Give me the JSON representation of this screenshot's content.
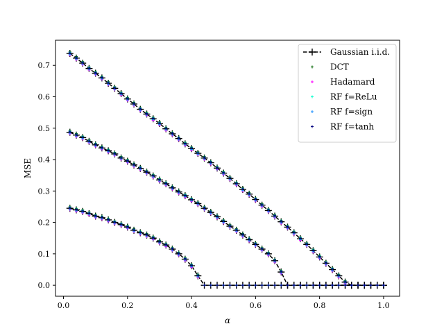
{
  "chart_data": {
    "type": "scatter",
    "xlabel": "α",
    "ylabel": "MSE",
    "xlim": [
      -0.025,
      1.05
    ],
    "ylim": [
      -0.035,
      0.78
    ],
    "xticks": [
      0.0,
      0.2,
      0.4,
      0.6,
      0.8,
      1.0
    ],
    "xtick_labels": [
      "0.0",
      "0.2",
      "0.4",
      "0.6",
      "0.8",
      "1.0"
    ],
    "yticks": [
      0.0,
      0.1,
      0.2,
      0.3,
      0.4,
      0.5,
      0.6,
      0.7
    ],
    "ytick_labels": [
      "0.0",
      "0.1",
      "0.2",
      "0.3",
      "0.4",
      "0.5",
      "0.6",
      "0.7"
    ],
    "grid": false,
    "legend_position": "top-right",
    "x": [
      0.02,
      0.04,
      0.06,
      0.08,
      0.1,
      0.12,
      0.14,
      0.16,
      0.18,
      0.2,
      0.22,
      0.24,
      0.26,
      0.28,
      0.3,
      0.32,
      0.34,
      0.36,
      0.38,
      0.4,
      0.42,
      0.44,
      0.46,
      0.48,
      0.5,
      0.52,
      0.54,
      0.56,
      0.58,
      0.6,
      0.62,
      0.64,
      0.66,
      0.68,
      0.7,
      0.72,
      0.74,
      0.76,
      0.78,
      0.8,
      0.82,
      0.84,
      0.86,
      0.88,
      0.9,
      0.92,
      0.94,
      0.96,
      0.98,
      1.0
    ],
    "curves": [
      {
        "values": [
          0.245,
          0.24,
          0.235,
          0.228,
          0.22,
          0.215,
          0.208,
          0.2,
          0.193,
          0.185,
          0.175,
          0.167,
          0.16,
          0.15,
          0.138,
          0.128,
          0.115,
          0.1,
          0.083,
          0.062,
          0.03,
          0.0,
          0.0,
          0.0,
          0.0,
          0.0,
          0.0,
          0.0,
          0.0,
          0.0,
          0.0,
          0.0,
          0.0,
          0.0,
          0.0,
          0.0,
          0.0,
          0.0,
          0.0,
          0.0,
          0.0,
          0.0,
          0.0,
          0.0,
          0.0,
          0.0,
          0.0,
          0.0,
          0.0,
          0.0
        ]
      },
      {
        "values": [
          0.487,
          0.478,
          0.47,
          0.458,
          0.447,
          0.437,
          0.428,
          0.418,
          0.405,
          0.395,
          0.383,
          0.372,
          0.36,
          0.348,
          0.335,
          0.323,
          0.31,
          0.297,
          0.285,
          0.272,
          0.26,
          0.245,
          0.232,
          0.218,
          0.203,
          0.188,
          0.175,
          0.16,
          0.145,
          0.13,
          0.115,
          0.1,
          0.078,
          0.042,
          0.0,
          0.0,
          0.0,
          0.0,
          0.0,
          0.0,
          0.0,
          0.0,
          0.0,
          0.0,
          0.0,
          0.0,
          0.0,
          0.0,
          0.0,
          0.0
        ]
      },
      {
        "values": [
          0.738,
          0.723,
          0.707,
          0.69,
          0.675,
          0.66,
          0.643,
          0.627,
          0.61,
          0.593,
          0.577,
          0.56,
          0.545,
          0.53,
          0.515,
          0.498,
          0.482,
          0.467,
          0.45,
          0.435,
          0.42,
          0.405,
          0.39,
          0.373,
          0.357,
          0.34,
          0.323,
          0.305,
          0.29,
          0.273,
          0.255,
          0.238,
          0.22,
          0.202,
          0.185,
          0.167,
          0.148,
          0.13,
          0.11,
          0.09,
          0.07,
          0.05,
          0.03,
          0.01,
          0.0,
          0.0,
          0.0,
          0.0,
          0.0,
          0.0
        ]
      }
    ],
    "series": [
      {
        "name": "Gaussian i.i.d.",
        "color": "#000000",
        "style": "dashed-line-plus",
        "offset": 0.0
      },
      {
        "name": "DCT",
        "color": "#006400",
        "style": "plus",
        "offset": 0.005
      },
      {
        "name": "Hadamard",
        "color": "#ff00ff",
        "style": "plus",
        "offset": -0.005
      },
      {
        "name": "RF f=ReLu",
        "color": "#00ffcc",
        "style": "plus",
        "offset": 0.003
      },
      {
        "name": "RF f=sign",
        "color": "#1e90ff",
        "style": "plus",
        "offset": -0.003
      },
      {
        "name": "RF f=tanh",
        "color": "#000080",
        "style": "plus",
        "offset": 0.002
      }
    ]
  }
}
